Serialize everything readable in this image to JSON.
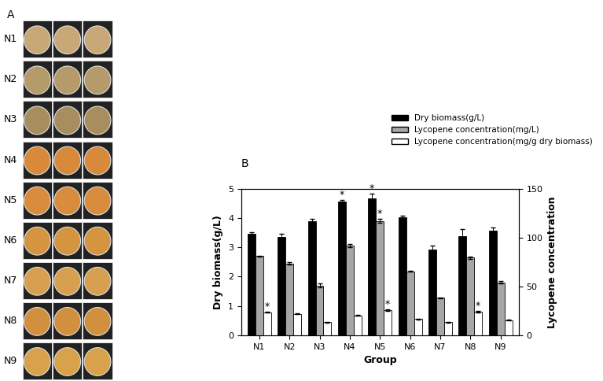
{
  "panel_a": {
    "label": "A",
    "rows": [
      "N1",
      "N2",
      "N3",
      "N4",
      "N5",
      "N6",
      "N7",
      "N8",
      "N9"
    ]
  },
  "chart_data": {
    "type": "bar",
    "panel_label": "B",
    "categories": [
      "N1",
      "N2",
      "N3",
      "N4",
      "N5",
      "N6",
      "N7",
      "N8",
      "N9"
    ],
    "x_label": "Group",
    "y_label": "Dry biomass(g/L)",
    "y2_label": "Lycopene concentration",
    "ylim": [
      0,
      5
    ],
    "yticks": [
      0,
      1,
      2,
      3,
      4,
      5
    ],
    "y2lim": [
      0,
      150
    ],
    "y2ticks": [
      0,
      50,
      100,
      150
    ],
    "legend": "upper right",
    "series": [
      {
        "name": "Dry biomass(g/L)",
        "color": "#000000",
        "axis": "y",
        "values": [
          3.45,
          3.35,
          3.88,
          4.55,
          4.68,
          4.02,
          2.92,
          3.38,
          3.58
        ],
        "errors": [
          0.07,
          0.12,
          0.08,
          0.07,
          0.15,
          0.06,
          0.15,
          0.25,
          0.1
        ],
        "annotations": [
          null,
          null,
          null,
          "*",
          "*",
          null,
          null,
          null,
          null
        ]
      },
      {
        "name": "Lycopene concentration(mg/L)",
        "color": "#a6a6a6",
        "axis": "y2",
        "values": [
          81,
          73.5,
          51,
          91.5,
          117,
          65.4,
          38.4,
          79.5,
          54
        ],
        "errors": [
          0.5,
          1.2,
          2,
          1.5,
          2,
          0.5,
          0.5,
          1.2,
          1.2
        ],
        "annotations": [
          null,
          null,
          null,
          null,
          "*",
          null,
          null,
          null,
          null
        ]
      },
      {
        "name": "Lycopene concentration(mg/g dry biomass)",
        "color": "#ffffff",
        "axis": "y2",
        "values": [
          23.4,
          22,
          13.5,
          20.4,
          25.5,
          16.5,
          13.5,
          24,
          15.6
        ],
        "errors": [
          0.5,
          0.3,
          0.3,
          0.3,
          0.8,
          0.3,
          0.3,
          0.6,
          0.3
        ],
        "annotations": [
          "*",
          null,
          null,
          null,
          "*",
          null,
          null,
          "*",
          null
        ]
      }
    ]
  }
}
